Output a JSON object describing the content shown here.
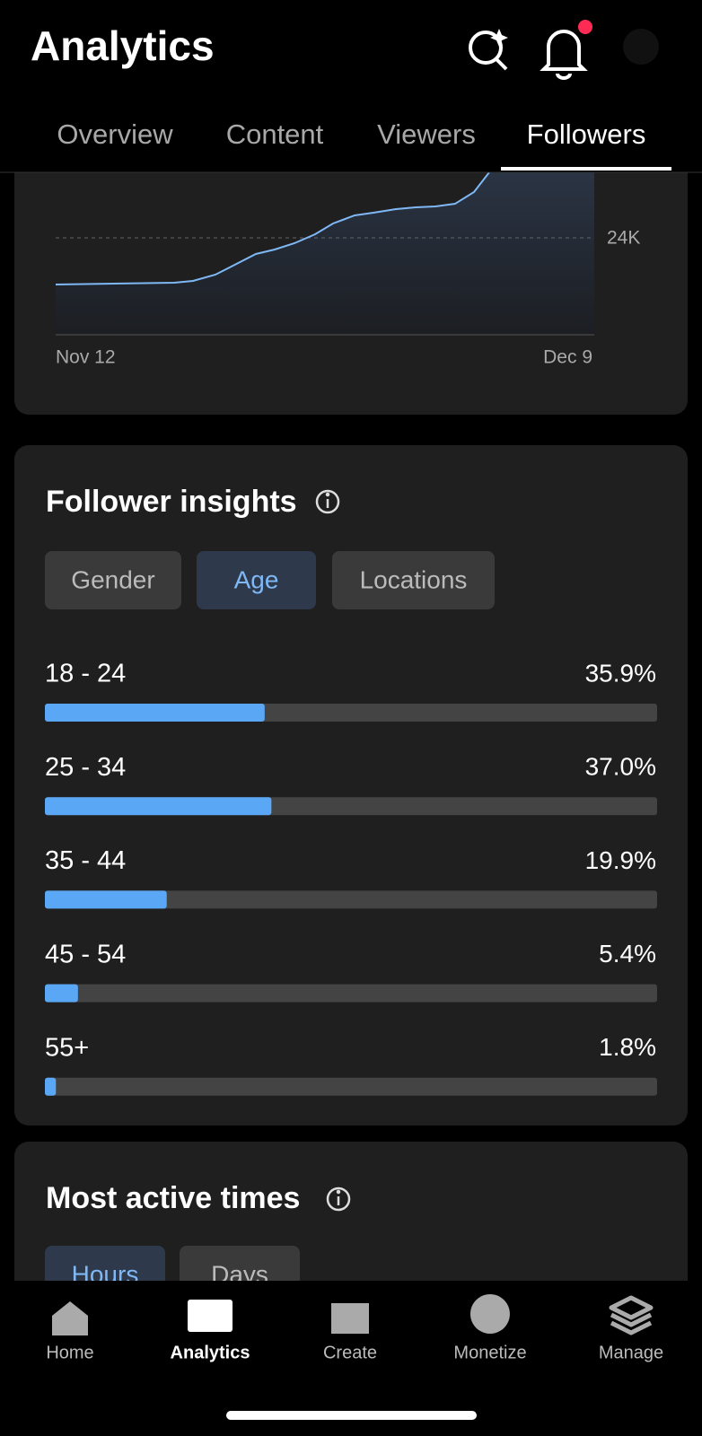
{
  "header": {
    "title": "Analytics"
  },
  "tabs": [
    "Overview",
    "Content",
    "Viewers",
    "Followers"
  ],
  "active_tab": 3,
  "follower_chart": {
    "ytick": "24K",
    "xlabels": [
      "Nov 12",
      "Dec 9"
    ]
  },
  "follower_insights": {
    "title": "Follower insights",
    "chips": [
      "Gender",
      "Age",
      "Locations"
    ],
    "active_chip": 1,
    "xlim": [
      0,
      100
    ],
    "rows": [
      {
        "label": "18 - 24",
        "value": 35.9,
        "value_label": "35.9%"
      },
      {
        "label": "25 - 34",
        "value": 37.0,
        "value_label": "37.0%"
      },
      {
        "label": "35 - 44",
        "value": 19.9,
        "value_label": "19.9%"
      },
      {
        "label": "45 - 54",
        "value": 5.4,
        "value_label": "5.4%"
      },
      {
        "label": "55+",
        "value": 1.8,
        "value_label": "1.8%"
      }
    ]
  },
  "most_active_times": {
    "title": "Most active times",
    "chips": [
      "Hours",
      "Days"
    ],
    "active_chip": 0
  },
  "nav": [
    "Home",
    "Analytics",
    "Create",
    "Monetize",
    "Manage"
  ],
  "active_nav": 1
}
